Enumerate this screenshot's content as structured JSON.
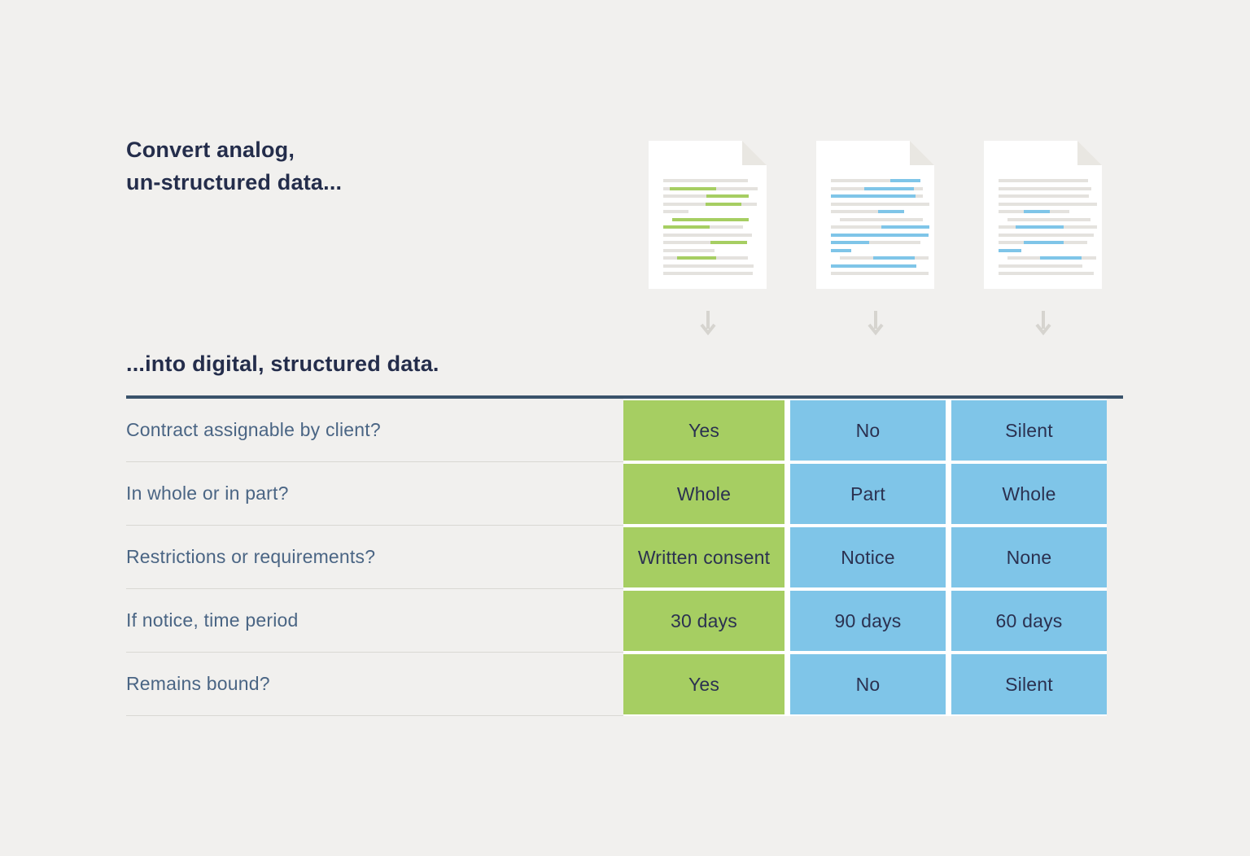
{
  "colors": {
    "background": "#f1f0ee",
    "navy": "#242d4b",
    "label_blue": "#4a6584",
    "green": "#a6ce62",
    "blue": "#7fc5e8",
    "cell_text": "#2b3150",
    "divider": "#d9d8d3",
    "table_top_border": "#3a536b",
    "doc_gray_line": "#e4e2de",
    "doc_fold": "#e9e7e2",
    "doc_page": "#ffffff",
    "arrow": "#d6d4cf"
  },
  "heading_top": {
    "line1": "Convert analog,",
    "line2": "un-structured data..."
  },
  "heading_bottom": "...into digital, structured data.",
  "icons": {
    "document": "document-icon",
    "down_arrow": "down-arrow-icon"
  },
  "documents": [
    {
      "name": "document-green-highlights",
      "highlight": "green",
      "lines": [
        [
          [
            "gray",
            86
          ]
        ],
        [
          [
            "gray",
            7
          ],
          [
            "green",
            47
          ],
          [
            "gray",
            42
          ]
        ],
        [
          [
            "gray",
            44
          ],
          [
            "green",
            43
          ]
        ],
        [
          [
            "gray",
            43
          ],
          [
            "green",
            36
          ],
          [
            "gray",
            16
          ]
        ],
        [
          [
            "gray",
            26
          ]
        ],
        [
          [
            "space",
            9
          ],
          [
            "green",
            78
          ]
        ],
        [
          [
            "green",
            47
          ],
          [
            "gray",
            34
          ]
        ],
        [
          [
            "gray",
            90
          ]
        ],
        [
          [
            "gray",
            48
          ],
          [
            "green",
            37
          ]
        ],
        [
          [
            "gray",
            52
          ]
        ],
        [
          [
            "gray",
            14
          ],
          [
            "green",
            40
          ],
          [
            "gray",
            32
          ]
        ],
        [
          [
            "gray",
            92
          ]
        ],
        [
          [
            "gray",
            91
          ]
        ]
      ]
    },
    {
      "name": "document-blue-highlights-dense",
      "highlight": "blue",
      "lines": [
        [
          [
            "gray",
            60
          ],
          [
            "blue",
            31
          ]
        ],
        [
          [
            "gray",
            34
          ],
          [
            "blue",
            50
          ],
          [
            "gray",
            9
          ]
        ],
        [
          [
            "blue",
            86
          ],
          [
            "gray",
            7
          ]
        ],
        [
          [
            "gray",
            100
          ]
        ],
        [
          [
            "gray",
            48
          ],
          [
            "blue",
            26
          ]
        ],
        [
          [
            "space",
            9
          ],
          [
            "gray",
            84
          ]
        ],
        [
          [
            "gray",
            51
          ],
          [
            "blue",
            49
          ]
        ],
        [
          [
            "blue",
            99
          ]
        ],
        [
          [
            "blue",
            39
          ],
          [
            "gray",
            52
          ]
        ],
        [
          [
            "blue",
            21
          ]
        ],
        [
          [
            "space",
            9
          ],
          [
            "gray",
            34
          ],
          [
            "blue",
            42
          ],
          [
            "gray",
            14
          ]
        ],
        [
          [
            "blue",
            87
          ]
        ],
        [
          [
            "gray",
            99
          ]
        ]
      ]
    },
    {
      "name": "document-blue-highlights-sparse",
      "highlight": "blue",
      "lines": [
        [
          [
            "gray",
            91
          ]
        ],
        [
          [
            "gray",
            94
          ]
        ],
        [
          [
            "gray",
            92
          ]
        ],
        [
          [
            "gray",
            100
          ]
        ],
        [
          [
            "gray",
            26
          ],
          [
            "blue",
            26
          ],
          [
            "gray",
            20
          ]
        ],
        [
          [
            "space",
            9
          ],
          [
            "gray",
            84
          ]
        ],
        [
          [
            "gray",
            17
          ],
          [
            "blue",
            49
          ],
          [
            "gray",
            34
          ]
        ],
        [
          [
            "gray",
            97
          ]
        ],
        [
          [
            "gray",
            26
          ],
          [
            "blue",
            40
          ],
          [
            "gray",
            24
          ]
        ],
        [
          [
            "blue",
            23
          ]
        ],
        [
          [
            "space",
            9
          ],
          [
            "gray",
            33
          ],
          [
            "blue",
            42
          ],
          [
            "gray",
            15
          ]
        ],
        [
          [
            "gray",
            85
          ]
        ],
        [
          [
            "gray",
            97
          ]
        ]
      ]
    }
  ],
  "arrows": [
    "down",
    "down",
    "down"
  ],
  "table": {
    "rows": [
      {
        "label": "Contract assignable by client?",
        "cells": [
          {
            "value": "Yes",
            "color": "green"
          },
          {
            "value": "No",
            "color": "blue"
          },
          {
            "value": "Silent",
            "color": "blue"
          }
        ]
      },
      {
        "label": "In whole or in part?",
        "cells": [
          {
            "value": "Whole",
            "color": "green"
          },
          {
            "value": "Part",
            "color": "blue"
          },
          {
            "value": "Whole",
            "color": "blue"
          }
        ]
      },
      {
        "label": "Restrictions or requirements?",
        "cells": [
          {
            "value": "Written consent",
            "color": "green"
          },
          {
            "value": "Notice",
            "color": "blue"
          },
          {
            "value": "None",
            "color": "blue"
          }
        ]
      },
      {
        "label": "If notice, time period",
        "cells": [
          {
            "value": "30 days",
            "color": "green"
          },
          {
            "value": "90 days",
            "color": "blue"
          },
          {
            "value": "60 days",
            "color": "blue"
          }
        ]
      },
      {
        "label": "Remains bound?",
        "cells": [
          {
            "value": "Yes",
            "color": "green"
          },
          {
            "value": "No",
            "color": "blue"
          },
          {
            "value": "Silent",
            "color": "blue"
          }
        ]
      }
    ]
  }
}
